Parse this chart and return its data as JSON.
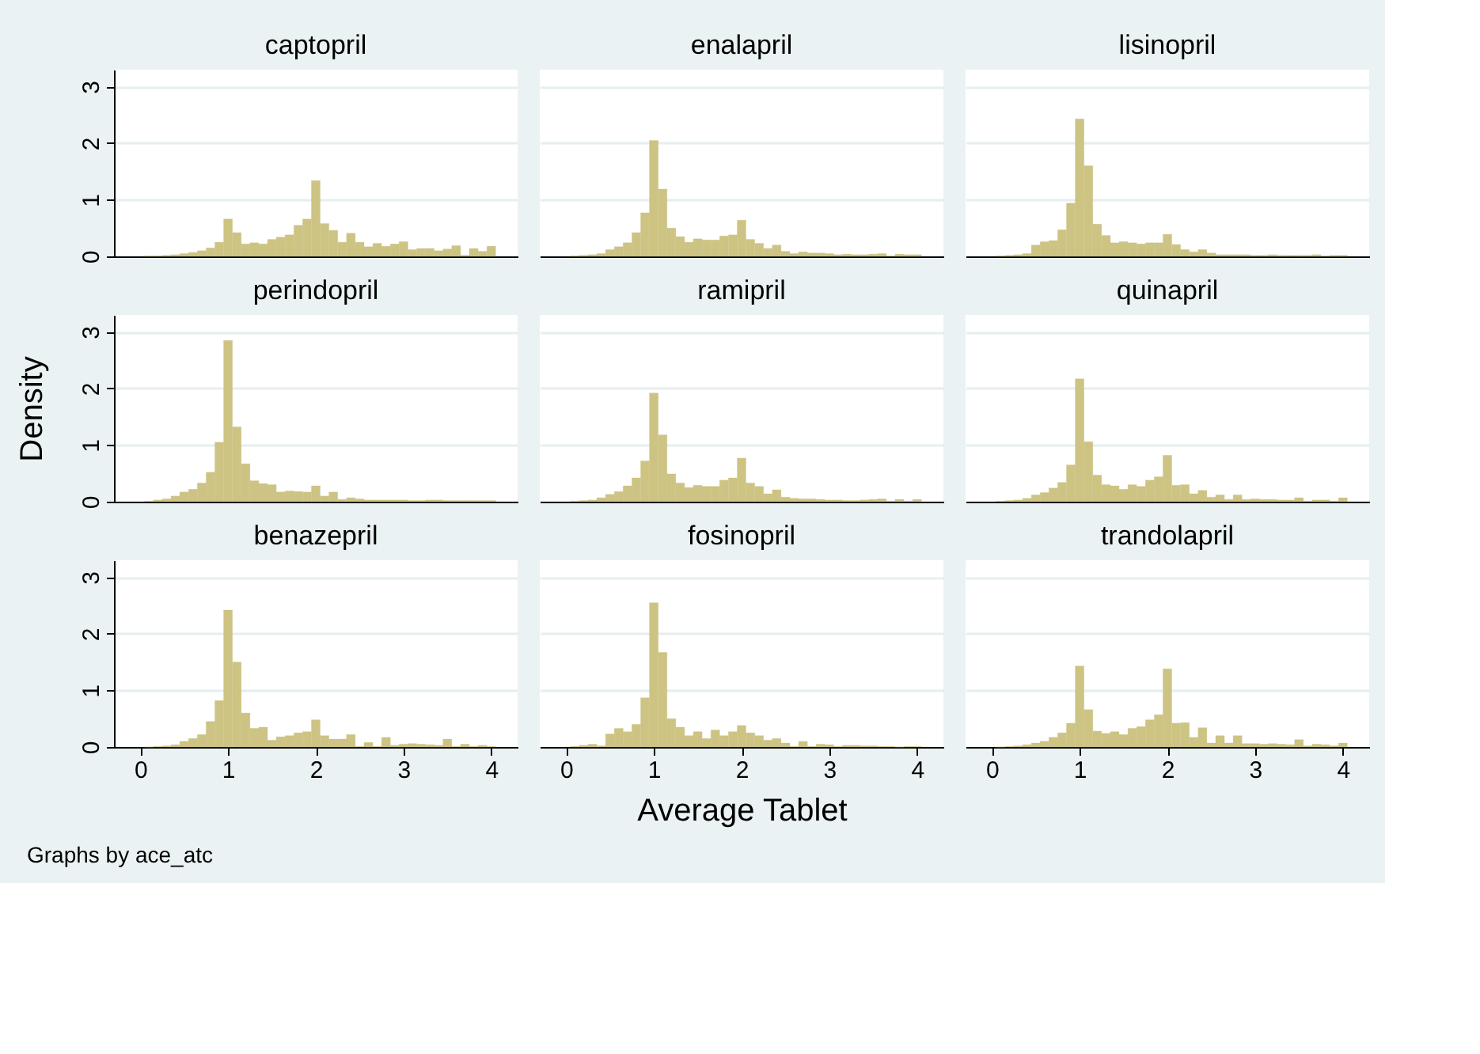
{
  "chart_data": [
    {
      "type": "histogram",
      "title": "captopril",
      "bins": [
        0.05,
        0.15,
        0.25,
        0.35,
        0.45,
        0.55,
        0.65,
        0.75,
        0.85,
        0.95,
        1.05,
        1.15,
        1.25,
        1.35,
        1.45,
        1.55,
        1.65,
        1.75,
        1.85,
        1.95,
        2.05,
        2.15,
        2.25,
        2.35,
        2.45,
        2.55,
        2.65,
        2.75,
        2.85,
        2.95,
        3.05,
        3.15,
        3.25,
        3.35,
        3.45,
        3.55,
        3.65,
        3.75,
        3.85,
        3.95,
        4.05
      ],
      "values": [
        0.01,
        0.01,
        0.02,
        0.03,
        0.05,
        0.07,
        0.1,
        0.15,
        0.25,
        0.66,
        0.42,
        0.22,
        0.24,
        0.22,
        0.3,
        0.34,
        0.38,
        0.55,
        0.66,
        1.34,
        0.58,
        0.46,
        0.25,
        0.41,
        0.25,
        0.17,
        0.23,
        0.18,
        0.22,
        0.26,
        0.12,
        0.14,
        0.14,
        0.1,
        0.13,
        0.19,
        0.02,
        0.14,
        0.09,
        0.18
      ],
      "color": "#cdc383",
      "xlim": [
        -0.3,
        4.3
      ],
      "xticks": [
        0,
        1,
        2,
        3,
        4
      ],
      "ylim": [
        0,
        3.3
      ],
      "yticks": [
        0,
        1,
        2,
        3
      ],
      "grid": "y",
      "tick_labels": "y"
    },
    {
      "type": "histogram",
      "title": "enalapril",
      "bins": [
        0.05,
        0.15,
        0.25,
        0.35,
        0.45,
        0.55,
        0.65,
        0.75,
        0.85,
        0.95,
        1.05,
        1.15,
        1.25,
        1.35,
        1.45,
        1.55,
        1.65,
        1.75,
        1.85,
        1.95,
        2.05,
        2.15,
        2.25,
        2.35,
        2.45,
        2.55,
        2.65,
        2.75,
        2.85,
        2.95,
        3.05,
        3.15,
        3.25,
        3.35,
        3.45,
        3.55,
        3.65,
        3.75,
        3.85,
        3.95,
        4.05
      ],
      "values": [
        0.01,
        0.02,
        0.03,
        0.05,
        0.12,
        0.17,
        0.24,
        0.42,
        0.77,
        2.05,
        1.19,
        0.5,
        0.35,
        0.25,
        0.31,
        0.29,
        0.29,
        0.36,
        0.38,
        0.64,
        0.3,
        0.23,
        0.14,
        0.2,
        0.09,
        0.05,
        0.08,
        0.06,
        0.06,
        0.05,
        0.03,
        0.04,
        0.03,
        0.03,
        0.04,
        0.05,
        0.01,
        0.04,
        0.03,
        0.03
      ],
      "color": "#cdc383",
      "xlim": [
        -0.3,
        4.3
      ],
      "xticks": [
        0,
        1,
        2,
        3,
        4
      ],
      "ylim": [
        0,
        3.3
      ],
      "yticks": [
        0,
        1,
        2,
        3
      ],
      "grid": "y",
      "tick_labels": false
    },
    {
      "type": "histogram",
      "title": "lisinopril",
      "bins": [
        0.05,
        0.15,
        0.25,
        0.35,
        0.45,
        0.55,
        0.65,
        0.75,
        0.85,
        0.95,
        1.05,
        1.15,
        1.25,
        1.35,
        1.45,
        1.55,
        1.65,
        1.75,
        1.85,
        1.95,
        2.05,
        2.15,
        2.25,
        2.35,
        2.45,
        2.55,
        2.65,
        2.75,
        2.85,
        2.95,
        3.05,
        3.15,
        3.25,
        3.35,
        3.45,
        3.55,
        3.65,
        3.75,
        3.85,
        3.95,
        4.05
      ],
      "values": [
        0.01,
        0.02,
        0.03,
        0.05,
        0.2,
        0.26,
        0.28,
        0.47,
        0.94,
        2.43,
        1.6,
        0.57,
        0.37,
        0.24,
        0.26,
        0.24,
        0.22,
        0.24,
        0.24,
        0.39,
        0.21,
        0.12,
        0.08,
        0.12,
        0.06,
        0.03,
        0.03,
        0.03,
        0.03,
        0.02,
        0.02,
        0.03,
        0.02,
        0.02,
        0.02,
        0.02,
        0.03,
        0.01,
        0.02,
        0.02
      ],
      "color": "#cdc383",
      "xlim": [
        -0.3,
        4.3
      ],
      "xticks": [
        0,
        1,
        2,
        3,
        4
      ],
      "ylim": [
        0,
        3.3
      ],
      "yticks": [
        0,
        1,
        2,
        3
      ],
      "grid": "y",
      "tick_labels": false
    },
    {
      "type": "histogram",
      "title": "perindopril",
      "ylabel": "Density",
      "bins": [
        0.05,
        0.15,
        0.25,
        0.35,
        0.45,
        0.55,
        0.65,
        0.75,
        0.85,
        0.95,
        1.05,
        1.15,
        1.25,
        1.35,
        1.45,
        1.55,
        1.65,
        1.75,
        1.85,
        1.95,
        2.05,
        2.15,
        2.25,
        2.35,
        2.45,
        2.55,
        2.65,
        2.75,
        2.85,
        2.95,
        3.05,
        3.15,
        3.25,
        3.35,
        3.45,
        3.55,
        3.65,
        3.75,
        3.85,
        3.95,
        4.05
      ],
      "values": [
        0.01,
        0.03,
        0.05,
        0.1,
        0.17,
        0.22,
        0.33,
        0.52,
        1.05,
        2.85,
        1.32,
        0.67,
        0.37,
        0.32,
        0.3,
        0.17,
        0.19,
        0.18,
        0.17,
        0.28,
        0.1,
        0.17,
        0.04,
        0.07,
        0.05,
        0.03,
        0.03,
        0.03,
        0.03,
        0.03,
        0.02,
        0.02,
        0.03,
        0.03,
        0.02,
        0.02,
        0.02,
        0.02,
        0.02,
        0.02
      ],
      "color": "#cdc383",
      "xlim": [
        -0.3,
        4.3
      ],
      "xticks": [
        0,
        1,
        2,
        3,
        4
      ],
      "ylim": [
        0,
        3.3
      ],
      "yticks": [
        0,
        1,
        2,
        3
      ],
      "grid": "y",
      "tick_labels": "y"
    },
    {
      "type": "histogram",
      "title": "ramipril",
      "bins": [
        0.05,
        0.15,
        0.25,
        0.35,
        0.45,
        0.55,
        0.65,
        0.75,
        0.85,
        0.95,
        1.05,
        1.15,
        1.25,
        1.35,
        1.45,
        1.55,
        1.65,
        1.75,
        1.85,
        1.95,
        2.05,
        2.15,
        2.25,
        2.35,
        2.45,
        2.55,
        2.65,
        2.75,
        2.85,
        2.95,
        3.05,
        3.15,
        3.25,
        3.35,
        3.45,
        3.55,
        3.65,
        3.75,
        3.85,
        3.95,
        4.05
      ],
      "values": [
        0.01,
        0.02,
        0.03,
        0.07,
        0.13,
        0.18,
        0.28,
        0.42,
        0.72,
        1.92,
        1.18,
        0.49,
        0.33,
        0.25,
        0.29,
        0.27,
        0.27,
        0.38,
        0.42,
        0.77,
        0.33,
        0.27,
        0.14,
        0.21,
        0.08,
        0.06,
        0.05,
        0.05,
        0.04,
        0.03,
        0.03,
        0.02,
        0.02,
        0.03,
        0.04,
        0.05,
        0.01,
        0.04,
        0.01,
        0.04
      ],
      "color": "#cdc383",
      "xlim": [
        -0.3,
        4.3
      ],
      "xticks": [
        0,
        1,
        2,
        3,
        4
      ],
      "ylim": [
        0,
        3.3
      ],
      "yticks": [
        0,
        1,
        2,
        3
      ],
      "grid": "y",
      "tick_labels": false
    },
    {
      "type": "histogram",
      "title": "quinapril",
      "bins": [
        0.05,
        0.15,
        0.25,
        0.35,
        0.45,
        0.55,
        0.65,
        0.75,
        0.85,
        0.95,
        1.05,
        1.15,
        1.25,
        1.35,
        1.45,
        1.55,
        1.65,
        1.75,
        1.85,
        1.95,
        2.05,
        2.15,
        2.25,
        2.35,
        2.45,
        2.55,
        2.65,
        2.75,
        2.85,
        2.95,
        3.05,
        3.15,
        3.25,
        3.35,
        3.45,
        3.55,
        3.65,
        3.75,
        3.85,
        3.95,
        4.05
      ],
      "values": [
        0.01,
        0.02,
        0.03,
        0.06,
        0.12,
        0.16,
        0.24,
        0.34,
        0.65,
        2.17,
        1.06,
        0.47,
        0.3,
        0.28,
        0.22,
        0.3,
        0.27,
        0.38,
        0.44,
        0.82,
        0.29,
        0.3,
        0.14,
        0.2,
        0.08,
        0.12,
        0.04,
        0.12,
        0.04,
        0.05,
        0.04,
        0.04,
        0.03,
        0.03,
        0.07,
        0.01,
        0.03,
        0.03,
        0.01,
        0.07
      ],
      "color": "#cdc383",
      "xlim": [
        -0.3,
        4.3
      ],
      "xticks": [
        0,
        1,
        2,
        3,
        4
      ],
      "ylim": [
        0,
        3.3
      ],
      "yticks": [
        0,
        1,
        2,
        3
      ],
      "grid": "y",
      "tick_labels": false
    },
    {
      "type": "histogram",
      "title": "benazepril",
      "annotations": [
        "Graphs by ace_atc"
      ],
      "bins": [
        0.05,
        0.15,
        0.25,
        0.35,
        0.45,
        0.55,
        0.65,
        0.75,
        0.85,
        0.95,
        1.05,
        1.15,
        1.25,
        1.35,
        1.45,
        1.55,
        1.65,
        1.75,
        1.85,
        1.95,
        2.05,
        2.15,
        2.25,
        2.35,
        2.45,
        2.55,
        2.65,
        2.75,
        2.85,
        2.95,
        3.05,
        3.15,
        3.25,
        3.35,
        3.45,
        3.55,
        3.65,
        3.75,
        3.85,
        3.95,
        4.05
      ],
      "values": [
        0.0,
        0.01,
        0.02,
        0.04,
        0.1,
        0.15,
        0.22,
        0.45,
        0.82,
        2.42,
        1.5,
        0.6,
        0.33,
        0.35,
        0.12,
        0.18,
        0.2,
        0.25,
        0.27,
        0.48,
        0.2,
        0.14,
        0.14,
        0.22,
        0.01,
        0.08,
        0.01,
        0.17,
        0.03,
        0.05,
        0.06,
        0.05,
        0.04,
        0.03,
        0.14,
        0.01,
        0.05,
        0.01,
        0.03,
        0.01
      ],
      "color": "#cdc383",
      "xlim": [
        -0.3,
        4.3
      ],
      "xticks": [
        0,
        1,
        2,
        3,
        4
      ],
      "ylim": [
        0,
        3.3
      ],
      "yticks": [
        0,
        1,
        2,
        3
      ],
      "grid": "y"
    },
    {
      "type": "histogram",
      "title": "fosinopril",
      "xlabel": "Average Tablet",
      "bins": [
        0.05,
        0.15,
        0.25,
        0.35,
        0.45,
        0.55,
        0.65,
        0.75,
        0.85,
        0.95,
        1.05,
        1.15,
        1.25,
        1.35,
        1.45,
        1.55,
        1.65,
        1.75,
        1.85,
        1.95,
        2.05,
        2.15,
        2.25,
        2.35,
        2.45,
        2.55,
        2.65,
        2.75,
        2.85,
        2.95,
        3.05,
        3.15,
        3.25,
        3.35,
        3.45,
        3.55,
        3.65,
        3.75,
        3.85,
        3.95,
        4.05
      ],
      "values": [
        0.01,
        0.03,
        0.05,
        0.02,
        0.23,
        0.33,
        0.27,
        0.4,
        0.87,
        2.55,
        1.67,
        0.5,
        0.35,
        0.2,
        0.27,
        0.15,
        0.3,
        0.2,
        0.27,
        0.38,
        0.25,
        0.2,
        0.12,
        0.15,
        0.07,
        0.01,
        0.1,
        0.01,
        0.05,
        0.04,
        0.01,
        0.03,
        0.03,
        0.02,
        0.02,
        0.01,
        0.01,
        0.0,
        0.01,
        0.01
      ],
      "color": "#cdc383",
      "xlim": [
        -0.3,
        4.3
      ],
      "xticks": [
        0,
        1,
        2,
        3,
        4
      ],
      "ylim": [
        0,
        3.3
      ],
      "yticks": [
        0,
        1,
        2,
        3
      ],
      "grid": "y",
      "tick_labels": "x"
    },
    {
      "type": "histogram",
      "title": "trandolapril",
      "bins": [
        0.05,
        0.15,
        0.25,
        0.35,
        0.45,
        0.55,
        0.65,
        0.75,
        0.85,
        0.95,
        1.05,
        1.15,
        1.25,
        1.35,
        1.45,
        1.55,
        1.65,
        1.75,
        1.85,
        1.95,
        2.05,
        2.15,
        2.25,
        2.35,
        2.45,
        2.55,
        2.65,
        2.75,
        2.85,
        2.95,
        3.05,
        3.15,
        3.25,
        3.35,
        3.45,
        3.55,
        3.65,
        3.75,
        3.85,
        3.95,
        4.05
      ],
      "values": [
        0.0,
        0.01,
        0.02,
        0.04,
        0.07,
        0.1,
        0.17,
        0.25,
        0.42,
        1.43,
        0.66,
        0.28,
        0.24,
        0.27,
        0.22,
        0.33,
        0.36,
        0.48,
        0.57,
        1.38,
        0.42,
        0.43,
        0.17,
        0.34,
        0.07,
        0.2,
        0.07,
        0.2,
        0.06,
        0.06,
        0.05,
        0.06,
        0.05,
        0.04,
        0.13,
        0.02,
        0.05,
        0.04,
        0.02,
        0.07
      ],
      "color": "#cdc383",
      "xlim": [
        -0.3,
        4.3
      ],
      "xticks": [
        0,
        1,
        2,
        3,
        4
      ],
      "ylim": [
        0,
        3.3
      ],
      "yticks": [
        0,
        1,
        2,
        3
      ],
      "grid": "y",
      "tick_labels": "x"
    }
  ]
}
